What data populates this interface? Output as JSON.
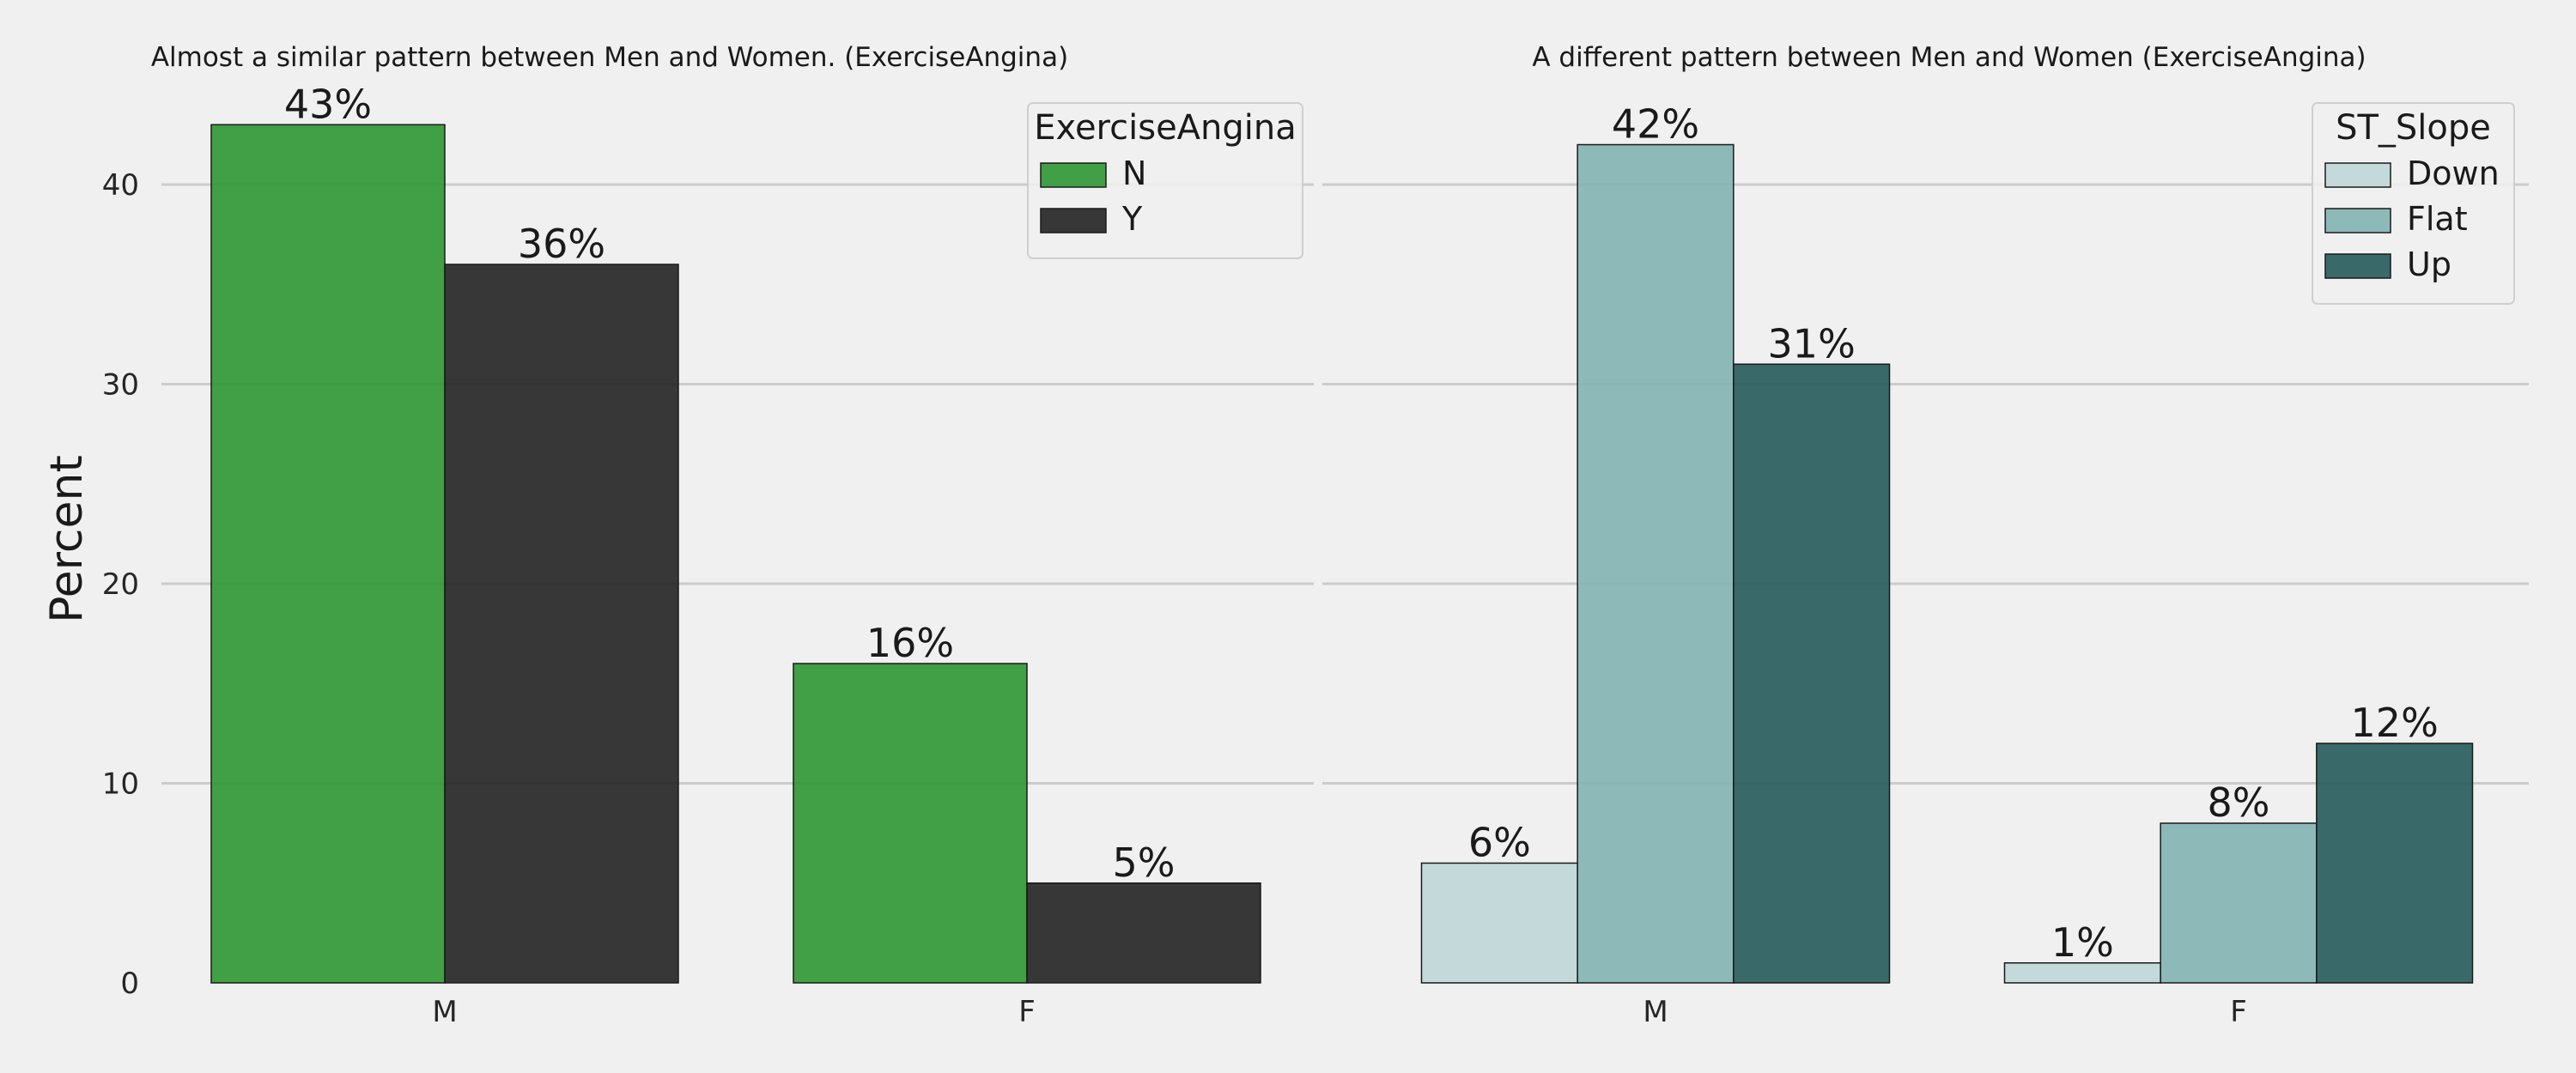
{
  "y_axis_label": "Percent",
  "chart_data": [
    {
      "type": "bar",
      "title": "Almost a similar pattern between Men and Women. (ExerciseAngina)",
      "categories": [
        "M",
        "F"
      ],
      "xlabel": "",
      "ylabel": "Percent",
      "ylim": [
        0,
        45
      ],
      "yticks": [
        0,
        10,
        20,
        30,
        40
      ],
      "grid": true,
      "legend": {
        "title": "ExerciseAngina",
        "placement": "top-right"
      },
      "series": [
        {
          "name": "N",
          "values": [
            43,
            16
          ],
          "labels": [
            "43%",
            "16%"
          ],
          "color": "#2e9632"
        },
        {
          "name": "Y",
          "values": [
            36,
            5
          ],
          "labels": [
            "36%",
            "5%"
          ],
          "color": "#222222"
        }
      ]
    },
    {
      "type": "bar",
      "title": "A different pattern between Men and Women (ExerciseAngina)",
      "categories": [
        "M",
        "F"
      ],
      "xlabel": "",
      "ylabel": "",
      "ylim": [
        0,
        45
      ],
      "yticks": [
        0,
        10,
        20,
        30,
        40
      ],
      "grid": true,
      "legend": {
        "title": "ST_Slope",
        "placement": "top-right"
      },
      "series": [
        {
          "name": "Down",
          "values": [
            6,
            1
          ],
          "labels": [
            "6%",
            "1%"
          ],
          "color": "#bfd6d6"
        },
        {
          "name": "Flat",
          "values": [
            42,
            8
          ],
          "labels": [
            "42%",
            "8%"
          ],
          "color": "#82b3b3"
        },
        {
          "name": "Up",
          "values": [
            31,
            12
          ],
          "labels": [
            "31%",
            "12%"
          ],
          "color": "#255a5a"
        }
      ]
    }
  ]
}
